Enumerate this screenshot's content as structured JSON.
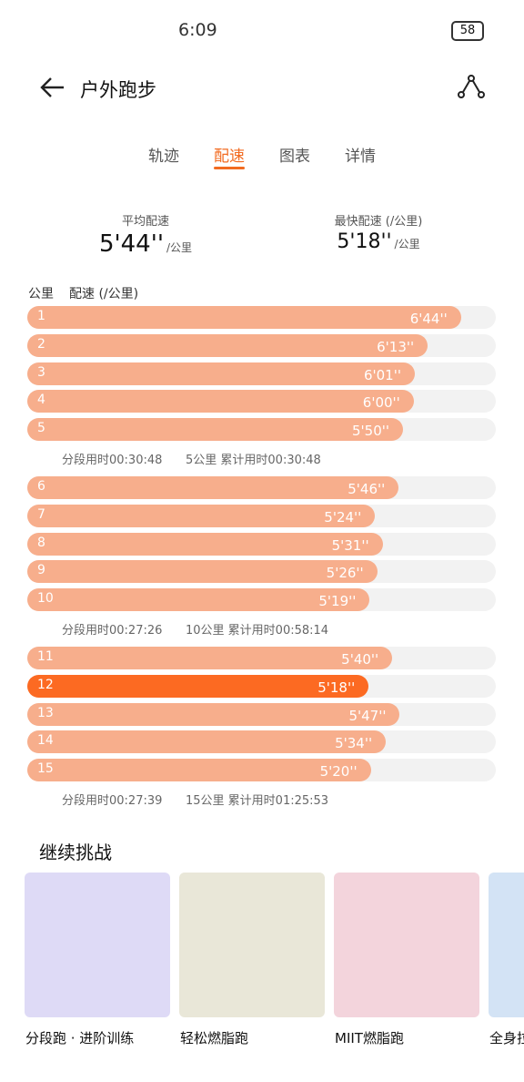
{
  "status_bar": {
    "time": "6:09",
    "battery": "58"
  },
  "header": {
    "title": "户外跑步"
  },
  "tabs": [
    {
      "label": "轨迹",
      "active": false
    },
    {
      "label": "配速",
      "active": true
    },
    {
      "label": "图表",
      "active": false
    },
    {
      "label": "详情",
      "active": false
    }
  ],
  "stats": [
    {
      "label": "平均配速",
      "value": "5'44''",
      "unit": "/公里"
    },
    {
      "label": "最快配速 (/公里)",
      "value": "5'18''",
      "unit": "/公里"
    }
  ],
  "columns": [
    "公里",
    "配速 (/公里)"
  ],
  "groups": [
    {
      "rows": [
        {
          "km": "1",
          "pace": "6'44''",
          "seconds": 404
        },
        {
          "km": "2",
          "pace": "6'13''",
          "seconds": 373
        },
        {
          "km": "3",
          "pace": "6'01''",
          "seconds": 361
        },
        {
          "km": "4",
          "pace": "6'00''",
          "seconds": 360
        },
        {
          "km": "5",
          "pace": "5'50''",
          "seconds": 350
        }
      ],
      "summary": {
        "split": "分段用时00:30:48",
        "total": "5公里 累计用时00:30:48"
      }
    },
    {
      "rows": [
        {
          "km": "6",
          "pace": "5'46''",
          "seconds": 346
        },
        {
          "km": "7",
          "pace": "5'24''",
          "seconds": 324
        },
        {
          "km": "8",
          "pace": "5'31''",
          "seconds": 331
        },
        {
          "km": "9",
          "pace": "5'26''",
          "seconds": 326
        },
        {
          "km": "10",
          "pace": "5'19''",
          "seconds": 319
        }
      ],
      "summary": {
        "split": "分段用时00:27:26",
        "total": "10公里 累计用时00:58:14"
      }
    },
    {
      "rows": [
        {
          "km": "11",
          "pace": "5'40''",
          "seconds": 340
        },
        {
          "km": "12",
          "pace": "5'18''",
          "seconds": 318,
          "highlight": true
        },
        {
          "km": "13",
          "pace": "5'47''",
          "seconds": 347
        },
        {
          "km": "14",
          "pace": "5'34''",
          "seconds": 334
        },
        {
          "km": "15",
          "pace": "5'20''",
          "seconds": 320
        }
      ],
      "summary": {
        "split": "分段用时00:27:39",
        "total": "15公里 累计用时01:25:53"
      }
    }
  ],
  "challenge": {
    "title": "继续挑战",
    "cards": [
      {
        "label": "分段跑 · 进阶训练",
        "color": "#dedaf6"
      },
      {
        "label": "轻松燃脂跑",
        "color": "#e9e7d8"
      },
      {
        "label": "MIIT燃脂跑",
        "color": "#f3d4dc"
      },
      {
        "label": "全身拉",
        "color": "#d3e3f5"
      }
    ]
  }
}
